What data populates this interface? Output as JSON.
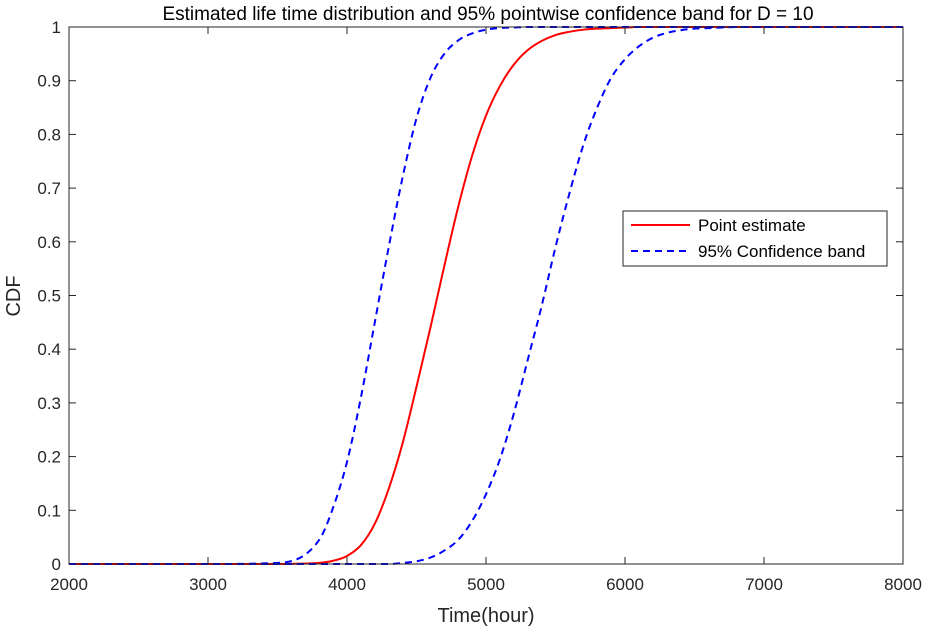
{
  "chart_data": {
    "type": "line",
    "title": "Estimated life time distribution and 95% pointwise confidence band for D = 10",
    "xlabel": "Time(hour)",
    "ylabel": "CDF",
    "xlim": [
      2000,
      8000
    ],
    "ylim": [
      0,
      1
    ],
    "xticks": [
      "2000",
      "3000",
      "4000",
      "5000",
      "6000",
      "7000",
      "8000"
    ],
    "yticks": [
      "0",
      "0.1",
      "0.2",
      "0.3",
      "0.4",
      "0.5",
      "0.6",
      "0.7",
      "0.8",
      "0.9",
      "1"
    ],
    "grid": false,
    "legend_position": "right",
    "x": [
      2000,
      3000,
      3500,
      3800,
      3900,
      4000,
      4100,
      4200,
      4300,
      4400,
      4500,
      4600,
      4700,
      4800,
      4900,
      5000,
      5100,
      5200,
      5300,
      5400,
      5500,
      5600,
      5700,
      5800,
      5900,
      6000,
      6100,
      6200,
      6300,
      6400,
      6500,
      6600,
      6700,
      6800,
      7000,
      7500,
      8000
    ],
    "series": [
      {
        "name": "Point estimate",
        "color": "#ff0000",
        "dash": "solid",
        "values": [
          0,
          0,
          0,
          0.002,
          0.006,
          0.015,
          0.035,
          0.075,
          0.14,
          0.225,
          0.33,
          0.44,
          0.555,
          0.665,
          0.76,
          0.835,
          0.89,
          0.93,
          0.957,
          0.974,
          0.985,
          0.991,
          0.995,
          0.997,
          0.998,
          0.999,
          1,
          1,
          1,
          1,
          1,
          1,
          1,
          1,
          1,
          1,
          1
        ]
      },
      {
        "name": "95% Confidence band",
        "color": "#0000ff",
        "dash": "dashed",
        "values": [
          0,
          0,
          0.002,
          0.045,
          0.105,
          0.19,
          0.31,
          0.45,
          0.59,
          0.72,
          0.83,
          0.905,
          0.95,
          0.975,
          0.988,
          0.995,
          0.998,
          0.999,
          1,
          1,
          1,
          1,
          1,
          1,
          1,
          1,
          1,
          1,
          1,
          1,
          1,
          1,
          1,
          1,
          1,
          1,
          1
        ]
      },
      {
        "name": "",
        "color": "#0000ff",
        "dash": "dashed",
        "values": [
          0,
          0,
          0,
          0,
          0,
          0,
          0,
          0,
          0,
          0.002,
          0.005,
          0.012,
          0.025,
          0.045,
          0.08,
          0.13,
          0.195,
          0.28,
          0.38,
          0.48,
          0.59,
          0.69,
          0.78,
          0.85,
          0.905,
          0.94,
          0.964,
          0.98,
          0.989,
          0.994,
          0.997,
          0.998,
          0.999,
          1,
          1,
          1,
          1
        ]
      }
    ]
  },
  "legend": [
    {
      "label": "Point estimate",
      "color": "#ff0000",
      "dash": "solid"
    },
    {
      "label": "95% Confidence band",
      "color": "#0000ff",
      "dash": "dashed"
    }
  ]
}
